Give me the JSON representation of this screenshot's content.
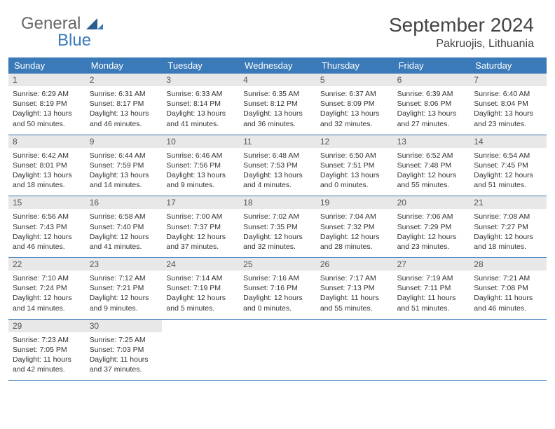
{
  "logo": {
    "text1": "General",
    "text2": "Blue"
  },
  "title": "September 2024",
  "location": "Pakruojis, Lithuania",
  "colors": {
    "header_bg": "#3a7ab8",
    "header_text": "#ffffff",
    "daynum_bg": "#e8e8e8",
    "border": "#3a7ab8",
    "logo_blue": "#3a7ab8",
    "body_text": "#333333"
  },
  "dayNames": [
    "Sunday",
    "Monday",
    "Tuesday",
    "Wednesday",
    "Thursday",
    "Friday",
    "Saturday"
  ],
  "labels": {
    "sunrise": "Sunrise:",
    "sunset": "Sunset:",
    "daylight": "Daylight:"
  },
  "days": [
    {
      "n": 1,
      "sunrise": "6:29 AM",
      "sunset": "8:19 PM",
      "daylight": "13 hours and 50 minutes."
    },
    {
      "n": 2,
      "sunrise": "6:31 AM",
      "sunset": "8:17 PM",
      "daylight": "13 hours and 46 minutes."
    },
    {
      "n": 3,
      "sunrise": "6:33 AM",
      "sunset": "8:14 PM",
      "daylight": "13 hours and 41 minutes."
    },
    {
      "n": 4,
      "sunrise": "6:35 AM",
      "sunset": "8:12 PM",
      "daylight": "13 hours and 36 minutes."
    },
    {
      "n": 5,
      "sunrise": "6:37 AM",
      "sunset": "8:09 PM",
      "daylight": "13 hours and 32 minutes."
    },
    {
      "n": 6,
      "sunrise": "6:39 AM",
      "sunset": "8:06 PM",
      "daylight": "13 hours and 27 minutes."
    },
    {
      "n": 7,
      "sunrise": "6:40 AM",
      "sunset": "8:04 PM",
      "daylight": "13 hours and 23 minutes."
    },
    {
      "n": 8,
      "sunrise": "6:42 AM",
      "sunset": "8:01 PM",
      "daylight": "13 hours and 18 minutes."
    },
    {
      "n": 9,
      "sunrise": "6:44 AM",
      "sunset": "7:59 PM",
      "daylight": "13 hours and 14 minutes."
    },
    {
      "n": 10,
      "sunrise": "6:46 AM",
      "sunset": "7:56 PM",
      "daylight": "13 hours and 9 minutes."
    },
    {
      "n": 11,
      "sunrise": "6:48 AM",
      "sunset": "7:53 PM",
      "daylight": "13 hours and 4 minutes."
    },
    {
      "n": 12,
      "sunrise": "6:50 AM",
      "sunset": "7:51 PM",
      "daylight": "13 hours and 0 minutes."
    },
    {
      "n": 13,
      "sunrise": "6:52 AM",
      "sunset": "7:48 PM",
      "daylight": "12 hours and 55 minutes."
    },
    {
      "n": 14,
      "sunrise": "6:54 AM",
      "sunset": "7:45 PM",
      "daylight": "12 hours and 51 minutes."
    },
    {
      "n": 15,
      "sunrise": "6:56 AM",
      "sunset": "7:43 PM",
      "daylight": "12 hours and 46 minutes."
    },
    {
      "n": 16,
      "sunrise": "6:58 AM",
      "sunset": "7:40 PM",
      "daylight": "12 hours and 41 minutes."
    },
    {
      "n": 17,
      "sunrise": "7:00 AM",
      "sunset": "7:37 PM",
      "daylight": "12 hours and 37 minutes."
    },
    {
      "n": 18,
      "sunrise": "7:02 AM",
      "sunset": "7:35 PM",
      "daylight": "12 hours and 32 minutes."
    },
    {
      "n": 19,
      "sunrise": "7:04 AM",
      "sunset": "7:32 PM",
      "daylight": "12 hours and 28 minutes."
    },
    {
      "n": 20,
      "sunrise": "7:06 AM",
      "sunset": "7:29 PM",
      "daylight": "12 hours and 23 minutes."
    },
    {
      "n": 21,
      "sunrise": "7:08 AM",
      "sunset": "7:27 PM",
      "daylight": "12 hours and 18 minutes."
    },
    {
      "n": 22,
      "sunrise": "7:10 AM",
      "sunset": "7:24 PM",
      "daylight": "12 hours and 14 minutes."
    },
    {
      "n": 23,
      "sunrise": "7:12 AM",
      "sunset": "7:21 PM",
      "daylight": "12 hours and 9 minutes."
    },
    {
      "n": 24,
      "sunrise": "7:14 AM",
      "sunset": "7:19 PM",
      "daylight": "12 hours and 5 minutes."
    },
    {
      "n": 25,
      "sunrise": "7:16 AM",
      "sunset": "7:16 PM",
      "daylight": "12 hours and 0 minutes."
    },
    {
      "n": 26,
      "sunrise": "7:17 AM",
      "sunset": "7:13 PM",
      "daylight": "11 hours and 55 minutes."
    },
    {
      "n": 27,
      "sunrise": "7:19 AM",
      "sunset": "7:11 PM",
      "daylight": "11 hours and 51 minutes."
    },
    {
      "n": 28,
      "sunrise": "7:21 AM",
      "sunset": "7:08 PM",
      "daylight": "11 hours and 46 minutes."
    },
    {
      "n": 29,
      "sunrise": "7:23 AM",
      "sunset": "7:05 PM",
      "daylight": "11 hours and 42 minutes."
    },
    {
      "n": 30,
      "sunrise": "7:25 AM",
      "sunset": "7:03 PM",
      "daylight": "11 hours and 37 minutes."
    }
  ],
  "startDayIndex": 0,
  "totalCells": 35
}
